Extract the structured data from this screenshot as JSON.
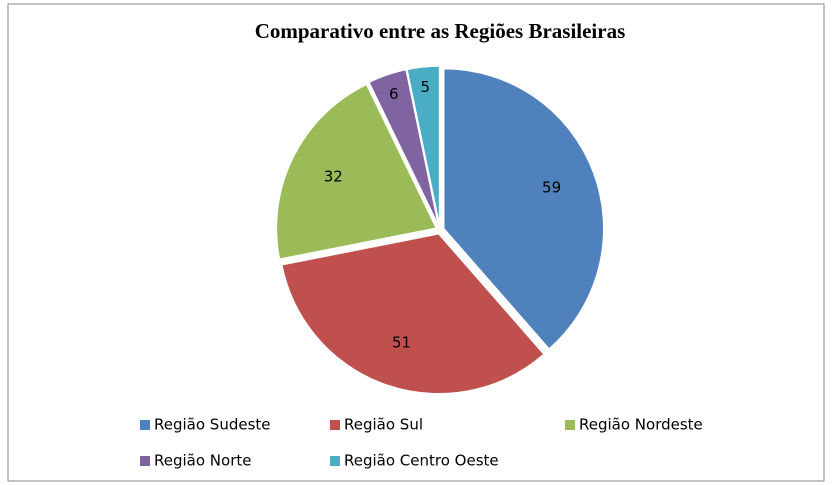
{
  "chart_data": {
    "type": "pie",
    "title": "Comparativo entre as Regiões Brasileiras",
    "categories": [
      "Região Sudeste",
      "Região Sul",
      "Região Nordeste",
      "Região Norte",
      "Região Centro Oeste"
    ],
    "values": [
      59,
      51,
      32,
      6,
      5
    ],
    "colors": [
      "#4f81bd",
      "#c0504d",
      "#9bbb59",
      "#8064a2",
      "#4bacc6"
    ],
    "legend": "bottom"
  }
}
